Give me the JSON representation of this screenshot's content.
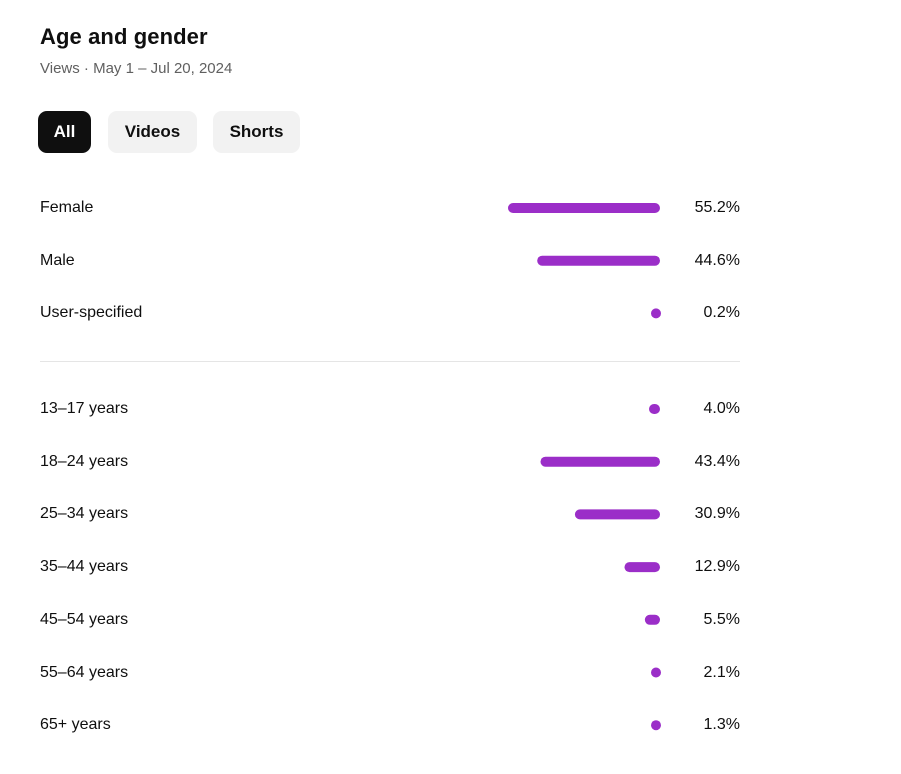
{
  "title": "Age and gender",
  "subtitle": "Views · May 1 – Jul 20, 2024",
  "filters": [
    {
      "label": "All",
      "active": true
    },
    {
      "label": "Videos",
      "active": false
    },
    {
      "label": "Shorts",
      "active": false
    }
  ],
  "colors": {
    "bar": "#9b2ec8",
    "active_chip_bg": "#0f0f0f",
    "chip_bg": "#f2f2f2",
    "divider": "#e5e5e5"
  },
  "chart_data": [
    {
      "type": "bar",
      "orientation": "horizontal",
      "categories": [
        "Female",
        "Male",
        "User-specified"
      ],
      "values": [
        55.2,
        44.6,
        0.2
      ],
      "value_labels": [
        "55.2%",
        "44.6%",
        "0.2%"
      ],
      "unit": "%"
    },
    {
      "type": "bar",
      "orientation": "horizontal",
      "categories": [
        "13–17 years",
        "18–24 years",
        "25–34 years",
        "35–44 years",
        "45–54 years",
        "55–64 years",
        "65+ years"
      ],
      "values": [
        4.0,
        43.4,
        30.9,
        12.9,
        5.5,
        2.1,
        1.3
      ],
      "value_labels": [
        "4.0%",
        "43.4%",
        "30.9%",
        "12.9%",
        "5.5%",
        "2.1%",
        "1.3%"
      ],
      "unit": "%"
    }
  ]
}
